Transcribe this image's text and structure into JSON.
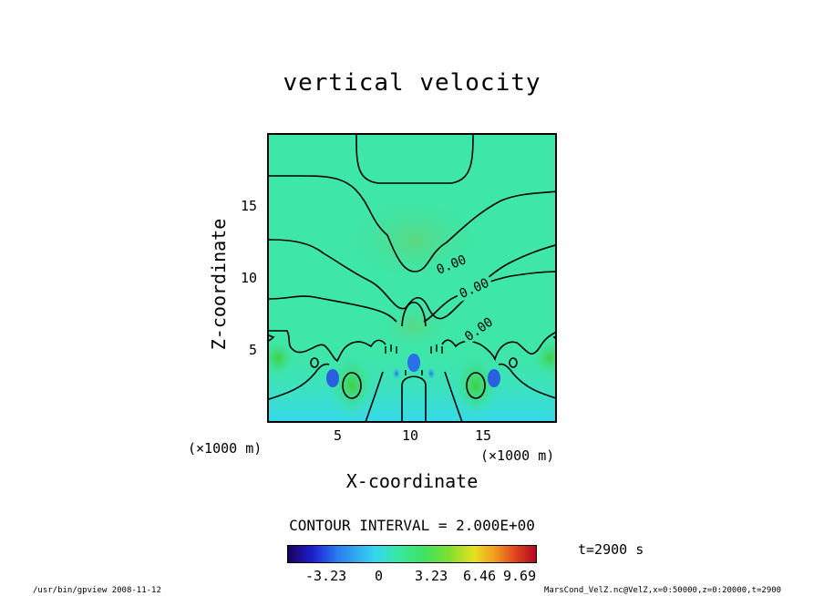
{
  "chart_data": {
    "type": "heatmap",
    "title": "vertical velocity",
    "xlabel": "X-coordinate",
    "ylabel": "Z-coordinate",
    "x_unit": "(×1000 m)",
    "y_unit": "(×1000 m)",
    "xlim": [
      0,
      20
    ],
    "ylim": [
      0,
      20
    ],
    "x_ticks": [
      "5",
      "10",
      "15"
    ],
    "y_ticks": [
      "5",
      "10",
      "15"
    ],
    "contour_labels": [
      "0.00",
      "0.00",
      "0.00"
    ],
    "contour_interval": "CONTOUR INTERVAL = 2.000E+00",
    "colorbar_ticks": [
      "-3.23",
      "0",
      "3.23",
      "6.46",
      "9.69"
    ],
    "time_label": "t=2900 s"
  },
  "footer": {
    "left": "/usr/bin/gpview   2008-11-12",
    "right": "MarsCond_VelZ.nc@VelZ,x=0:50000,z=0:20000,t=2900"
  },
  "colors": {
    "background_field": "#3ee6a8",
    "low": "#37d5f0",
    "high": "#5ad84a"
  }
}
